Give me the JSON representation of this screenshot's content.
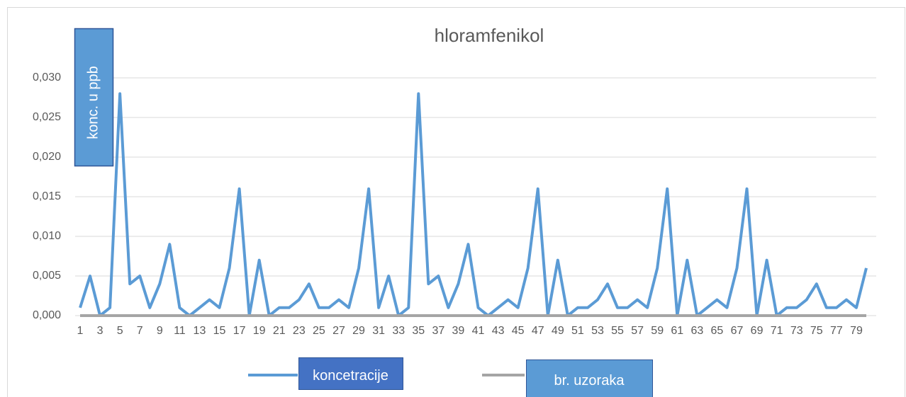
{
  "chart_data": {
    "type": "line",
    "title": "hloramfenikol",
    "y_label": "konc. u ppb",
    "categories": [
      1,
      null,
      3,
      null,
      5,
      null,
      7,
      null,
      9,
      null,
      11,
      null,
      13,
      null,
      15,
      null,
      17,
      null,
      19,
      null,
      21,
      null,
      23,
      null,
      25,
      null,
      27,
      null,
      29,
      null,
      31,
      null,
      33,
      null,
      35,
      null,
      37,
      null,
      39,
      null,
      41,
      null,
      43,
      null,
      45,
      null,
      47,
      null,
      49,
      null,
      51,
      null,
      53,
      null,
      55,
      null,
      57,
      null,
      59,
      null,
      61,
      null,
      63,
      null,
      65,
      null,
      67,
      null,
      69,
      null,
      71,
      null,
      73,
      null,
      75,
      null,
      77,
      null,
      79,
      null
    ],
    "series": [
      {
        "name": "koncetracije",
        "color": "#5b9bd5",
        "values": [
          0.001,
          0.005,
          0.0,
          0.001,
          0.028,
          0.004,
          0.005,
          0.001,
          0.004,
          0.009,
          0.001,
          0.0,
          0.001,
          0.002,
          0.001,
          0.006,
          0.016,
          0.0,
          0.007,
          0.0,
          0.001,
          0.001,
          0.002,
          0.004,
          0.001,
          0.001,
          0.002,
          0.001,
          0.006,
          0.016,
          0.001,
          0.005,
          0.0,
          0.001,
          0.028,
          0.004,
          0.005,
          0.001,
          0.004,
          0.009,
          0.001,
          0.0,
          0.001,
          0.002,
          0.001,
          0.006,
          0.016,
          0.0,
          0.007,
          0.0,
          0.001,
          0.001,
          0.002,
          0.004,
          0.001,
          0.001,
          0.002,
          0.001,
          0.006,
          0.016,
          0.0,
          0.007,
          0.0,
          0.001,
          0.002,
          0.001,
          0.006,
          0.016,
          0.0,
          0.007,
          0.0,
          0.001,
          0.001,
          0.002,
          0.004,
          0.001,
          0.001,
          0.002,
          0.001,
          0.006
        ]
      },
      {
        "name": "br. uzoraka",
        "color": "#a5a5a5",
        "values": [
          0,
          0,
          0,
          0,
          0,
          0,
          0,
          0,
          0,
          0,
          0,
          0,
          0,
          0,
          0,
          0,
          0,
          0,
          0,
          0,
          0,
          0,
          0,
          0,
          0,
          0,
          0,
          0,
          0,
          0,
          0,
          0,
          0,
          0,
          0,
          0,
          0,
          0,
          0,
          0,
          0,
          0,
          0,
          0,
          0,
          0,
          0,
          0,
          0,
          0,
          0,
          0,
          0,
          0,
          0,
          0,
          0,
          0,
          0,
          0,
          0,
          0,
          0,
          0,
          0,
          0,
          0,
          0,
          0,
          0,
          0,
          0,
          0,
          0,
          0,
          0,
          0,
          0,
          0,
          0
        ]
      }
    ],
    "ylim": [
      0,
      0.03
    ],
    "yticks": [
      {
        "value": 0,
        "label": "0,000"
      },
      {
        "value": 0.005,
        "label": "0,005"
      },
      {
        "value": 0.01,
        "label": "0,010"
      },
      {
        "value": 0.015,
        "label": "0,015"
      },
      {
        "value": 0.02,
        "label": "0,020"
      },
      {
        "value": 0.025,
        "label": "0,025"
      },
      {
        "value": 0.03,
        "label": "0,030"
      }
    ],
    "grid": true
  }
}
